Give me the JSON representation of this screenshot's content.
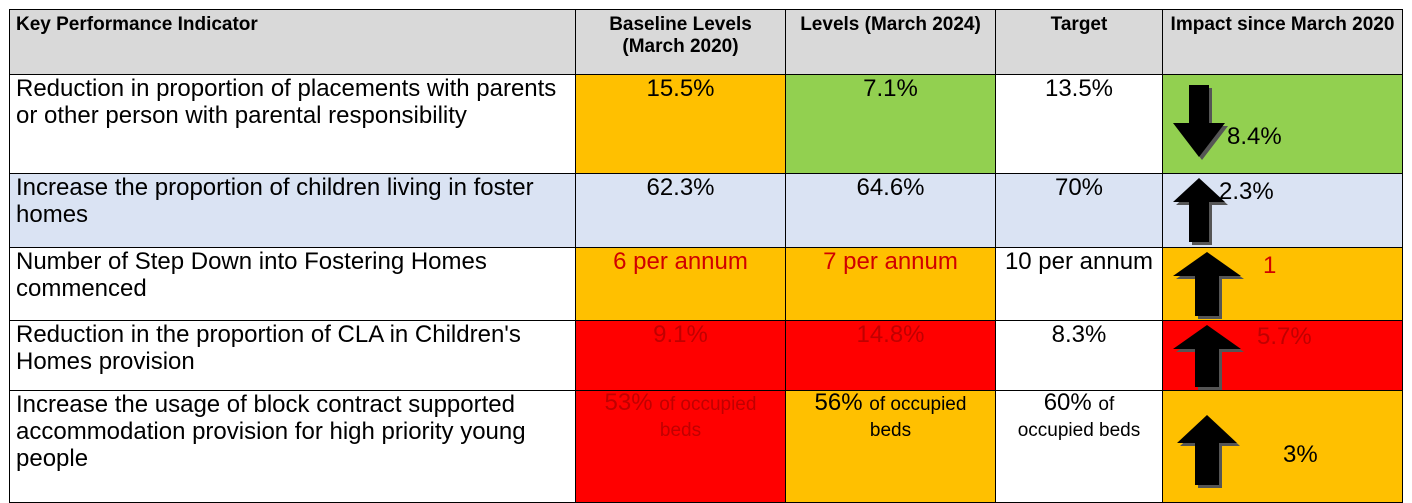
{
  "table": {
    "header": [
      "Key Performance Indicator",
      "Baseline Levels (March 2020)",
      "Levels (March 2024)",
      "Target",
      "Impact since March 2020"
    ],
    "rows": [
      {
        "kpi": "Reduction in proportion of placements with parents or other person with parental responsibility",
        "baseline": {
          "main": "15.5%"
        },
        "current": {
          "main": "7.1%"
        },
        "target": {
          "main": "13.5%"
        },
        "impact": "8.4%"
      },
      {
        "kpi": "Increase the proportion of children living in foster homes",
        "baseline": {
          "main": "62.3%"
        },
        "current": {
          "main": "64.6%"
        },
        "target": {
          "main": "70%"
        },
        "impact": "2.3%"
      },
      {
        "kpi": "Number of Step Down into Fostering Homes commenced",
        "baseline": {
          "main": "6 per annum"
        },
        "current": {
          "main": "7 per annum"
        },
        "target": {
          "main": "10 per annum"
        },
        "impact": "1"
      },
      {
        "kpi": "Reduction in the proportion of CLA in Children's Homes provision",
        "baseline": {
          "main": "9.1%"
        },
        "current": {
          "main": "14.8%"
        },
        "target": {
          "main": "8.3%"
        },
        "impact": "5.7%"
      },
      {
        "kpi": "Increase the usage of block contract supported accommodation provision for high priority young people",
        "baseline": {
          "main": "53%",
          "unit": "of occupied beds"
        },
        "current": {
          "main": "56%",
          "unit": "of occupied beds"
        },
        "target": {
          "main": "60%",
          "unit": "of occupied beds"
        },
        "impact": "3%"
      }
    ]
  }
}
